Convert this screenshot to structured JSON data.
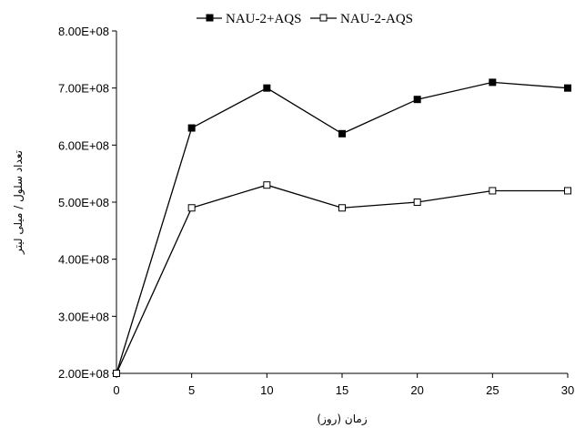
{
  "chart_data": {
    "type": "line",
    "title": "",
    "xlabel": "زمان (روز)",
    "ylabel": "تعداد سلول / میلی لیتر",
    "x": [
      0,
      5,
      10,
      15,
      20,
      25,
      30
    ],
    "xlim": [
      0,
      30
    ],
    "xticks": [
      "0",
      "5",
      "10",
      "15",
      "20",
      "25",
      "30"
    ],
    "ylim": [
      200000000,
      800000000
    ],
    "yticks": [
      "2.00E+08",
      "3.00E+08",
      "4.00E+08",
      "5.00E+08",
      "6.00E+08",
      "7.00E+08",
      "8.00E+08"
    ],
    "grid": false,
    "legend_position": "top",
    "series": [
      {
        "name": "NAU-2+AQS",
        "marker": "filled-square",
        "color": "#000000",
        "values": [
          200000000,
          630000000,
          700000000,
          620000000,
          680000000,
          710000000,
          700000000
        ]
      },
      {
        "name": "NAU-2-AQS",
        "marker": "open-square",
        "color": "#000000",
        "values": [
          200000000,
          490000000,
          530000000,
          490000000,
          500000000,
          520000000,
          520000000
        ]
      }
    ]
  }
}
